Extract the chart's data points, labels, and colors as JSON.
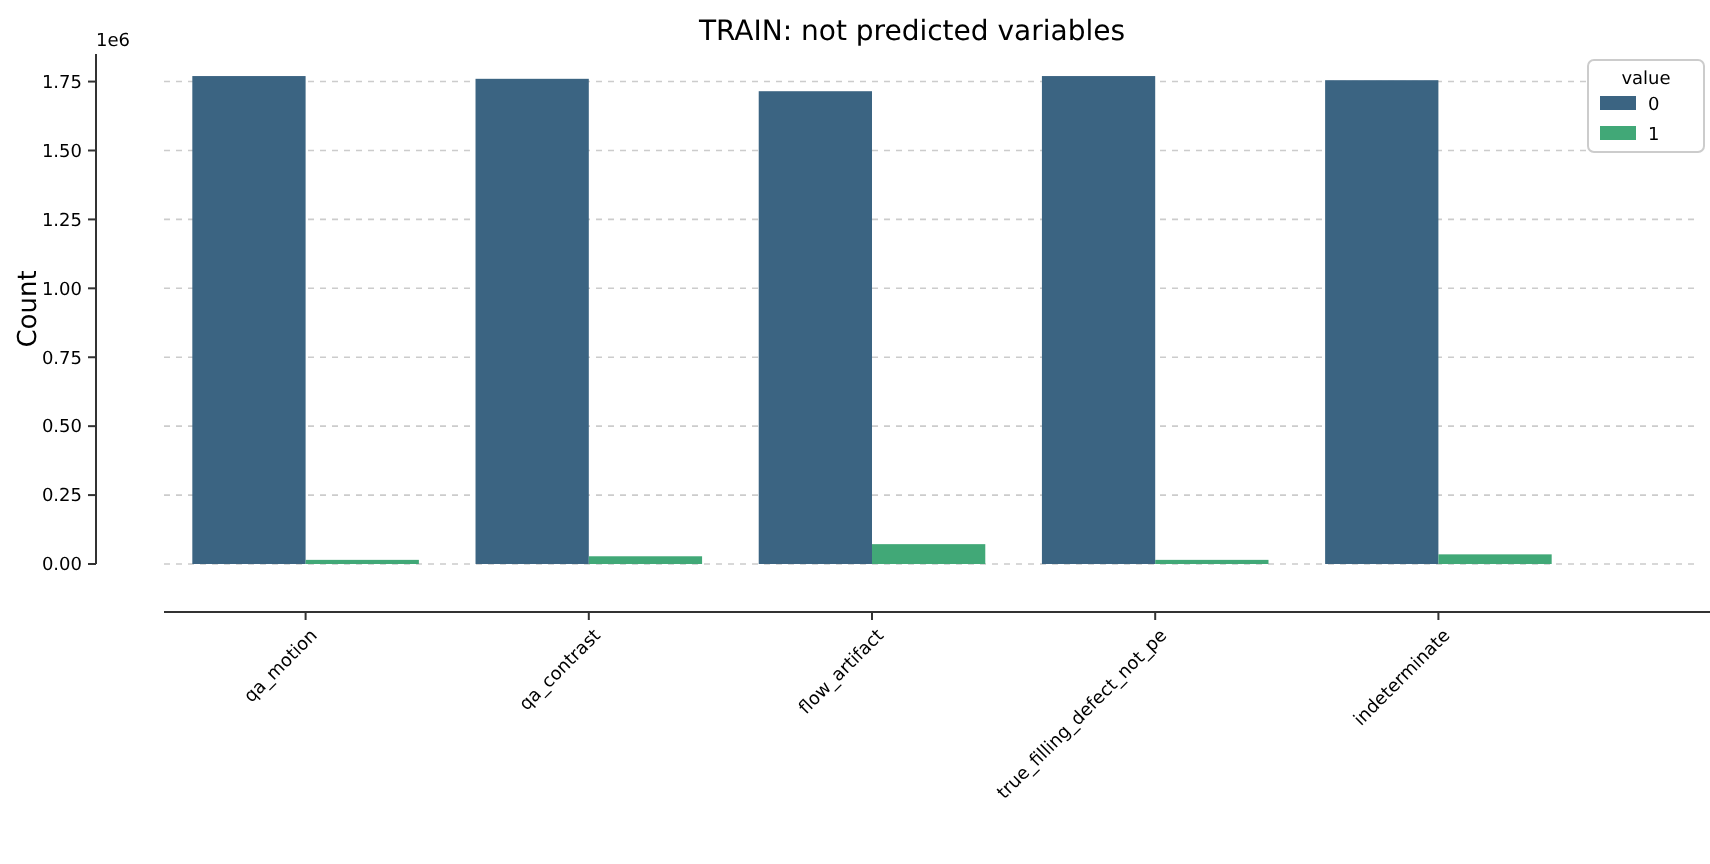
{
  "chart_data": {
    "type": "bar",
    "title": "TRAIN: not predicted variables",
    "ylabel": "Count",
    "legend_title": "value",
    "categories": [
      "qa_motion",
      "qa_contrast",
      "flow_artifact",
      "true_filling_defect_not_pe",
      "indeterminate"
    ],
    "series": [
      {
        "name": "0",
        "color": "#3b6482",
        "values": [
          1.77,
          1.76,
          1.715,
          1.77,
          1.755
        ]
      },
      {
        "name": "1",
        "color": "#41a877",
        "values": [
          0.015,
          0.028,
          0.072,
          0.015,
          0.035
        ]
      }
    ],
    "ylim": [
      0,
      1.85
    ],
    "yticks": [
      {
        "value": 0,
        "label": "0.00"
      },
      0.25,
      {
        "value": 0.5,
        "label": "0.50"
      },
      0.75,
      {
        "value": 1,
        "label": "1.00"
      },
      1.25,
      {
        "value": 1.5,
        "label": "1.50"
      },
      1.75
    ],
    "annotations": [
      "1e6"
    ],
    "grid": "y",
    "legend": "top right"
  }
}
